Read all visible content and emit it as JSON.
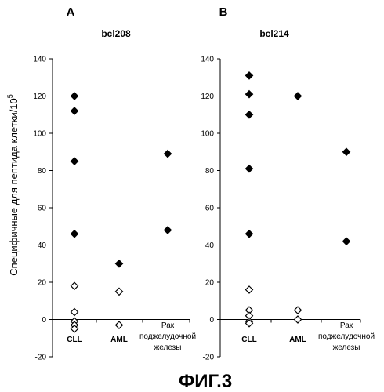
{
  "ylabel": "Специфичные для пептида клетки/10",
  "ylabel_sup": "5",
  "caption": "ФИГ.3",
  "chart_data": [
    {
      "type": "scatter",
      "panel": "A",
      "title": "bcl208",
      "categories": [
        {
          "lines": [
            "CLL"
          ],
          "bold": true
        },
        {
          "lines": [
            "AML"
          ],
          "bold": true
        },
        {
          "lines": [
            "Рак",
            "поджелудочной",
            "железы"
          ],
          "bold": false
        }
      ],
      "ylim": [
        -20,
        140
      ],
      "yticks": [
        -20,
        0,
        20,
        40,
        60,
        80,
        100,
        120,
        140
      ],
      "series": [
        {
          "marker": "filled-diamond",
          "points": [
            [
              0,
              120
            ],
            [
              0,
              112
            ],
            [
              0,
              85
            ],
            [
              0,
              46
            ],
            [
              1,
              30
            ],
            [
              2,
              89
            ],
            [
              2,
              48
            ]
          ]
        },
        {
          "marker": "open-diamond",
          "points": [
            [
              0,
              18
            ],
            [
              0,
              4
            ],
            [
              0,
              -1
            ],
            [
              0,
              -3
            ],
            [
              0,
              -5
            ],
            [
              1,
              15
            ],
            [
              1,
              -3
            ]
          ]
        }
      ]
    },
    {
      "type": "scatter",
      "panel": "B",
      "title": "bcl214",
      "categories": [
        {
          "lines": [
            "CLL"
          ],
          "bold": true
        },
        {
          "lines": [
            "AML"
          ],
          "bold": true
        },
        {
          "lines": [
            "Рак",
            "поджелудочной",
            "железы"
          ],
          "bold": false
        }
      ],
      "ylim": [
        -20,
        140
      ],
      "yticks": [
        -20,
        0,
        20,
        40,
        60,
        80,
        100,
        120,
        140
      ],
      "series": [
        {
          "marker": "filled-diamond",
          "points": [
            [
              0,
              131
            ],
            [
              0,
              121
            ],
            [
              0,
              110
            ],
            [
              0,
              81
            ],
            [
              0,
              46
            ],
            [
              1,
              120
            ],
            [
              2,
              90
            ],
            [
              2,
              42
            ]
          ]
        },
        {
          "marker": "open-diamond",
          "points": [
            [
              0,
              16
            ],
            [
              0,
              5
            ],
            [
              0,
              2
            ],
            [
              0,
              -1
            ],
            [
              0,
              -2
            ],
            [
              1,
              5
            ],
            [
              1,
              0
            ]
          ]
        }
      ]
    }
  ]
}
